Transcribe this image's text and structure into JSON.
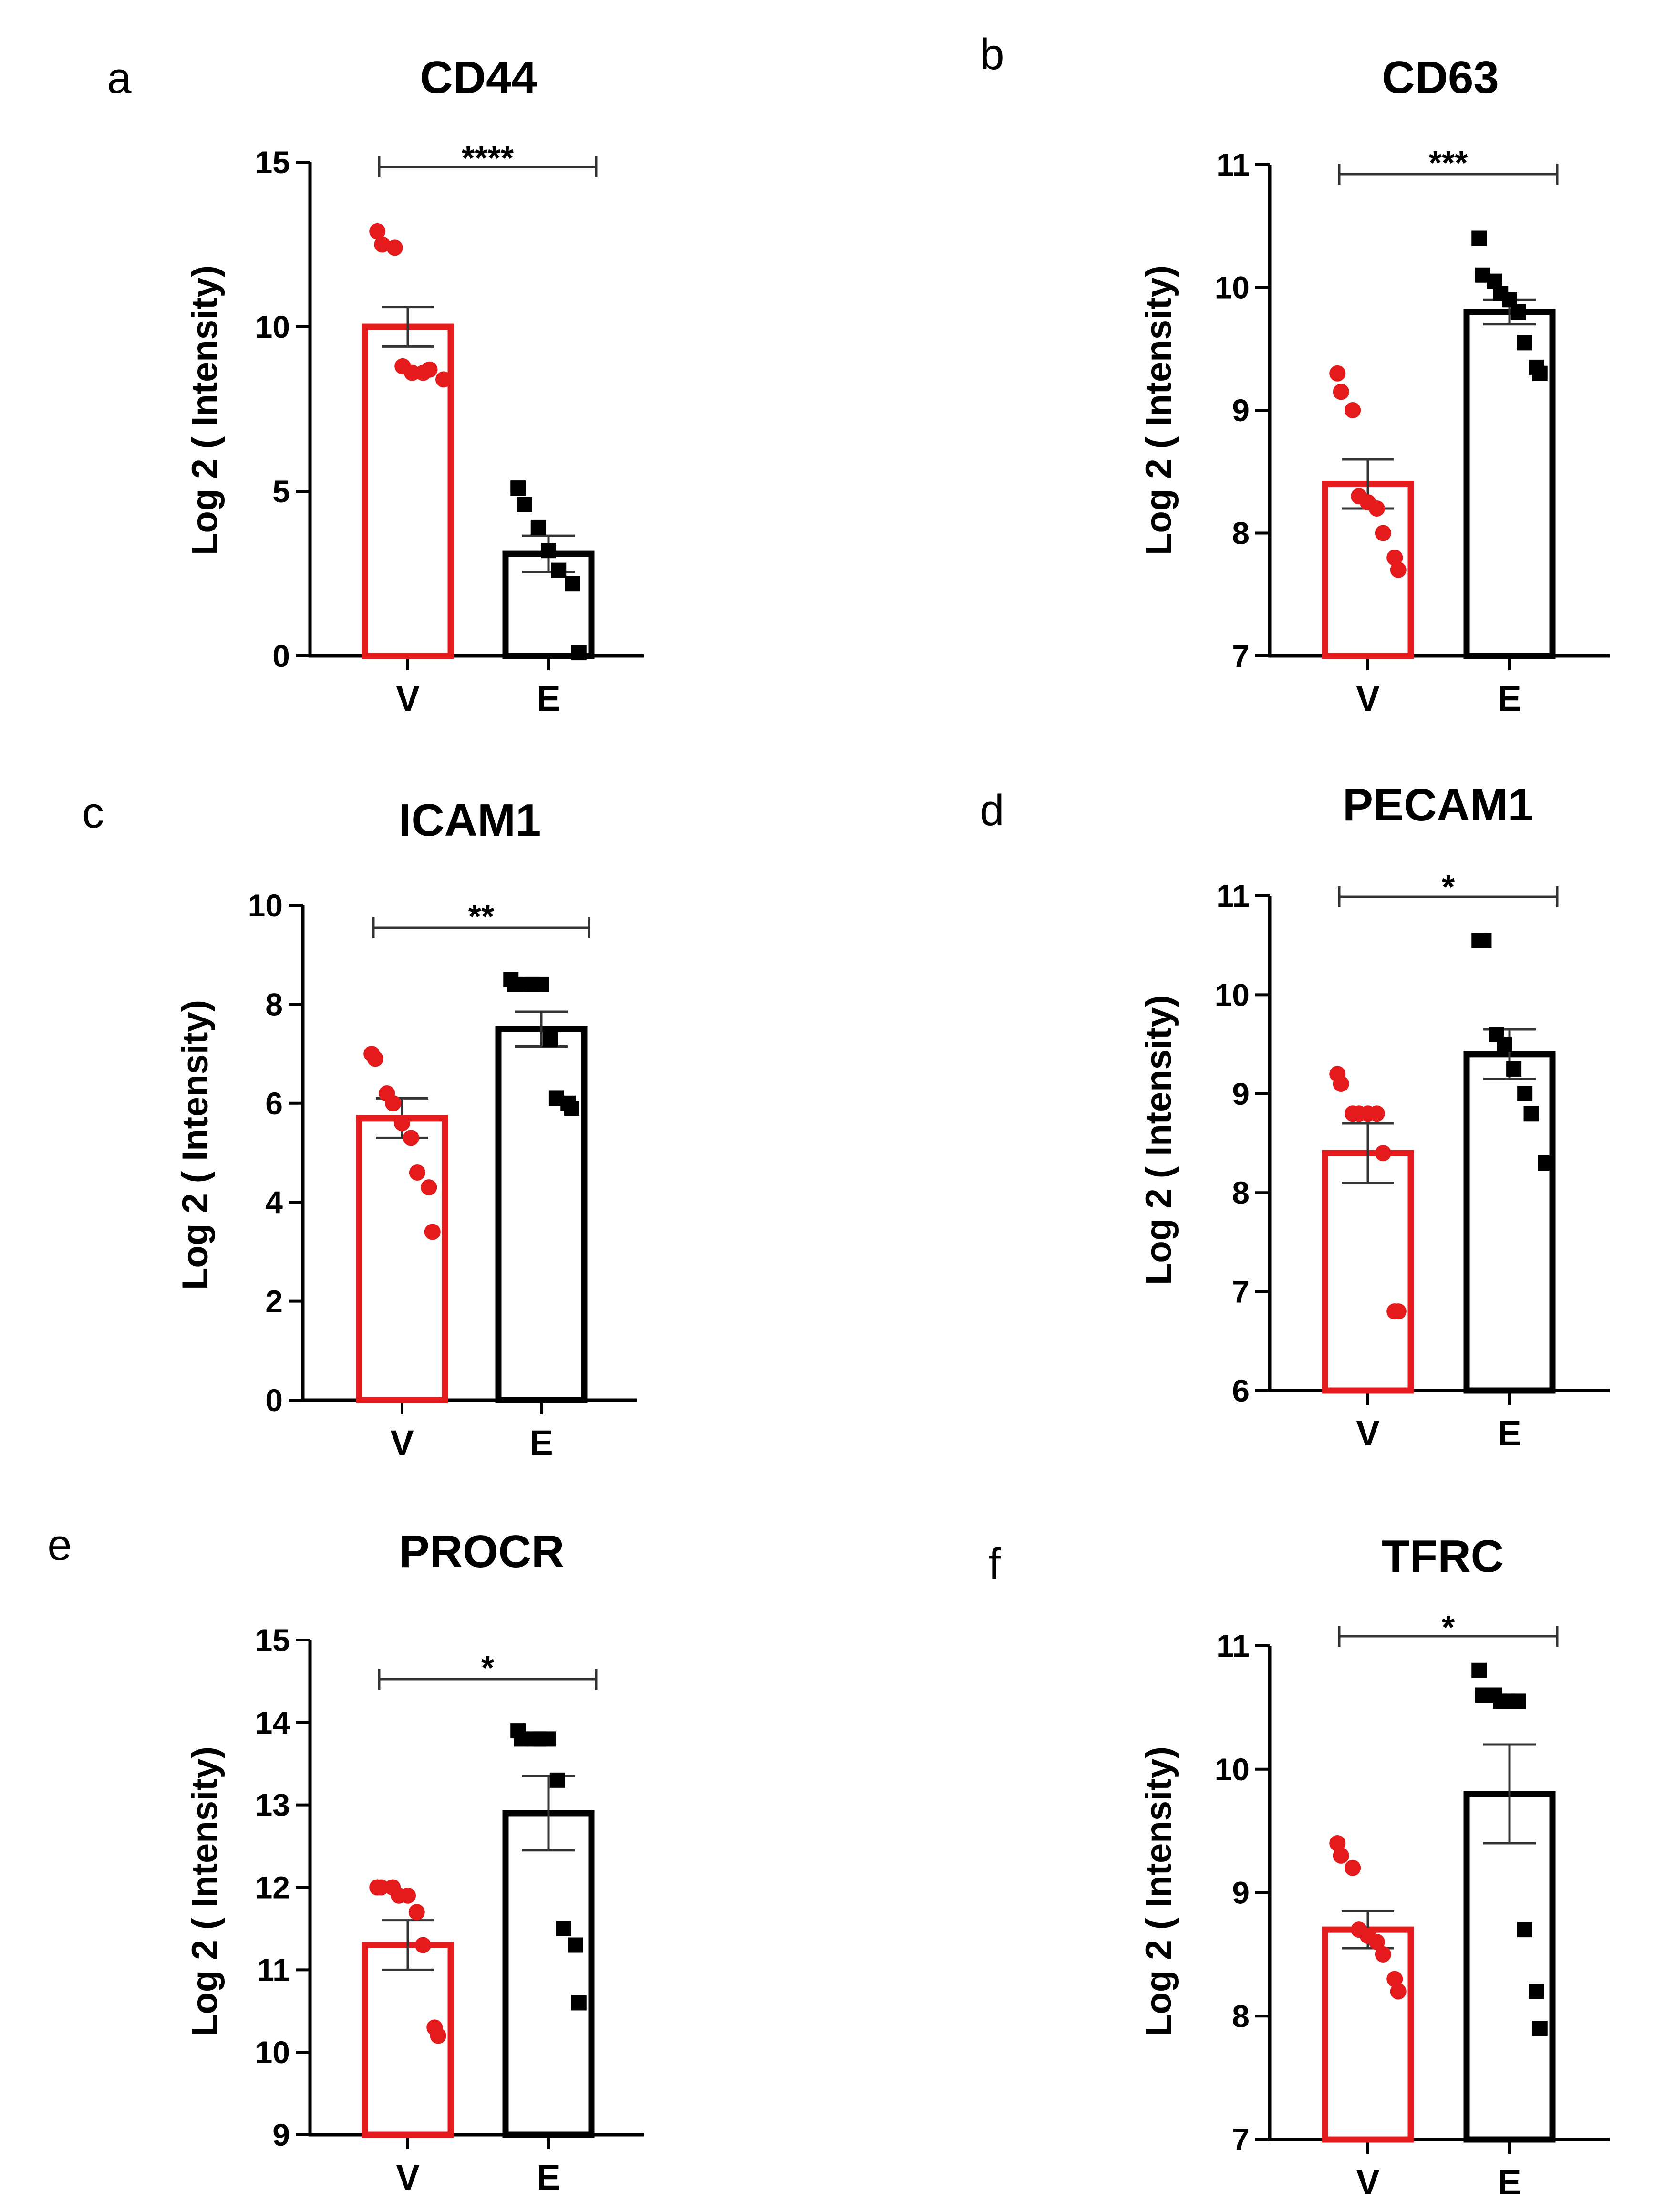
{
  "figure": {
    "colors": {
      "V": "#e41a1c",
      "E": "#000000"
    }
  },
  "chart_data": [
    {
      "type": "bar",
      "panel": "a",
      "title": "CD44",
      "ylabel": "Log 2 ( Intensity)",
      "xlabel": "",
      "categories": [
        "V",
        "E"
      ],
      "ylim": [
        0,
        15
      ],
      "yticks": [
        0,
        5,
        10,
        15
      ],
      "means": [
        10.0,
        3.1
      ],
      "errors": [
        0.6,
        0.55
      ],
      "points": [
        [
          12.9,
          12.5,
          12.4,
          8.8,
          8.6,
          8.6,
          8.7,
          8.4
        ],
        [
          5.1,
          4.6,
          3.9,
          3.2,
          2.6,
          2.2,
          0.1
        ]
      ],
      "significance": "****"
    },
    {
      "type": "bar",
      "panel": "b",
      "title": "CD63",
      "ylabel": "Log 2 ( Intensity)",
      "xlabel": "",
      "categories": [
        "V",
        "E"
      ],
      "ylim": [
        7,
        11
      ],
      "yticks": [
        7,
        8,
        9,
        10,
        11
      ],
      "means": [
        8.4,
        9.8
      ],
      "errors": [
        0.2,
        0.1
      ],
      "points": [
        [
          9.3,
          9.15,
          9.0,
          8.3,
          8.25,
          8.2,
          8.0,
          7.8,
          7.7
        ],
        [
          10.4,
          10.1,
          10.05,
          9.95,
          9.9,
          9.8,
          9.55,
          9.35,
          9.3
        ]
      ],
      "significance": "***"
    },
    {
      "type": "bar",
      "panel": "c",
      "title": "ICAM1",
      "ylabel": "Log 2 ( Intensity)",
      "xlabel": "",
      "categories": [
        "V",
        "E"
      ],
      "ylim": [
        0,
        10
      ],
      "yticks": [
        0,
        2,
        4,
        6,
        8,
        10
      ],
      "means": [
        5.7,
        7.5
      ],
      "errors": [
        0.4,
        0.35
      ],
      "points": [
        [
          7.0,
          6.9,
          6.2,
          6.0,
          5.6,
          5.3,
          4.6,
          4.3,
          3.4
        ],
        [
          8.5,
          8.4,
          8.4,
          8.4,
          8.4,
          7.3,
          6.1,
          6.0,
          5.9
        ]
      ],
      "significance": "**"
    },
    {
      "type": "bar",
      "panel": "d",
      "title": "PECAM1",
      "ylabel": "Log 2 ( Intensity)",
      "xlabel": "",
      "categories": [
        "V",
        "E"
      ],
      "ylim": [
        6,
        11
      ],
      "yticks": [
        6,
        7,
        8,
        9,
        10,
        11
      ],
      "means": [
        8.4,
        9.4
      ],
      "errors": [
        0.3,
        0.25
      ],
      "points": [
        [
          9.2,
          9.1,
          8.8,
          8.8,
          8.8,
          8.8,
          8.4,
          6.8,
          6.8
        ],
        [
          10.55,
          10.55,
          9.6,
          9.5,
          9.25,
          9.0,
          8.8,
          8.3
        ]
      ],
      "significance": "*"
    },
    {
      "type": "bar",
      "panel": "e",
      "title": "PROCR",
      "ylabel": "Log 2 ( Intensity)",
      "xlabel": "",
      "categories": [
        "V",
        "E"
      ],
      "ylim": [
        9,
        15
      ],
      "yticks": [
        9,
        10,
        11,
        12,
        13,
        14,
        15
      ],
      "means": [
        11.3,
        12.9
      ],
      "errors": [
        0.3,
        0.45
      ],
      "points": [
        [
          12.0,
          12.0,
          12.0,
          11.9,
          11.9,
          11.7,
          11.3,
          10.3,
          10.2
        ],
        [
          13.9,
          13.8,
          13.8,
          13.8,
          13.8,
          13.3,
          11.5,
          11.3,
          10.6
        ]
      ],
      "significance": "*"
    },
    {
      "type": "bar",
      "panel": "f",
      "title": "TFRC",
      "ylabel": "Log 2 ( Intensity)",
      "xlabel": "",
      "categories": [
        "V",
        "E"
      ],
      "ylim": [
        7,
        11
      ],
      "yticks": [
        7,
        8,
        9,
        10,
        11
      ],
      "means": [
        8.7,
        9.8
      ],
      "errors": [
        0.15,
        0.4
      ],
      "points": [
        [
          9.4,
          9.3,
          9.2,
          8.7,
          8.65,
          8.6,
          8.5,
          8.3,
          8.2
        ],
        [
          10.8,
          10.6,
          10.6,
          10.55,
          10.55,
          10.55,
          8.7,
          8.2,
          7.9
        ]
      ],
      "significance": "*"
    }
  ]
}
